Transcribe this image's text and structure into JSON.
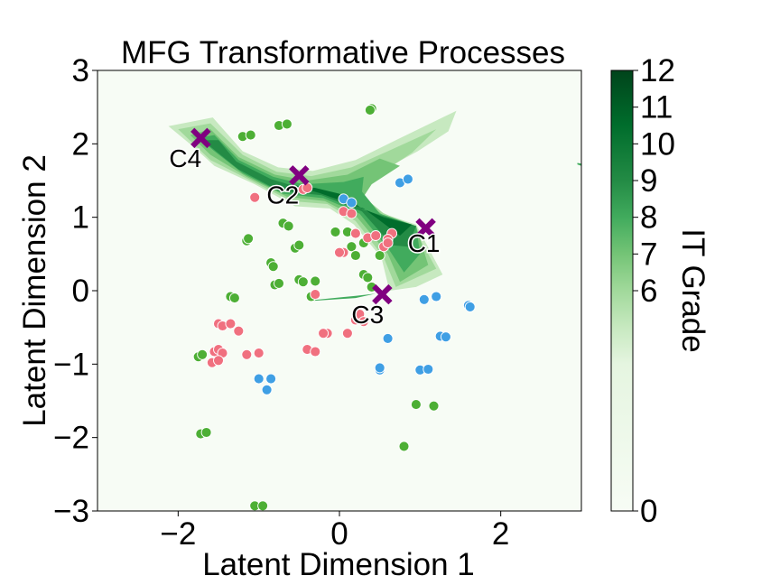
{
  "chart_data": {
    "type": "scatter",
    "title": "MFG Transformative Processes",
    "xlabel": "Latent Dimension 1",
    "ylabel": "Latent Dimension 2",
    "xlim": [
      -3,
      3
    ],
    "ylim": [
      -3,
      3
    ],
    "xticks": [
      -2,
      0,
      2
    ],
    "yticks": [
      -3,
      -2,
      -1,
      0,
      1,
      2,
      3
    ],
    "xtick_labels": [
      "−2",
      "0",
      "2"
    ],
    "ytick_labels": [
      "−3",
      "−2",
      "−1",
      "0",
      "1",
      "2",
      "3"
    ],
    "colorbar": {
      "label": "IT Grade",
      "range": [
        0,
        12
      ],
      "ticks": [
        0,
        6,
        7,
        8,
        9,
        10,
        11,
        12
      ],
      "tick_labels": [
        "0",
        "6",
        "7",
        "8",
        "9",
        "10",
        "11",
        "12"
      ],
      "colors": [
        "#f7fcf5",
        "#e5f5e0",
        "#c7e9c0",
        "#a1d99b",
        "#74c476",
        "#41ab5d",
        "#238b45",
        "#006d2c",
        "#00441b"
      ]
    },
    "background_color": "#f7fcf5",
    "point_colors": {
      "green": "#4daf35",
      "pink": "#f0707f",
      "blue": "#3f9fe4"
    },
    "centroid_color": "#800080",
    "surface_bands": [
      {
        "grade": 6,
        "polygon": [
          [
            -2.12,
            2.24
          ],
          [
            -1.57,
            2.36
          ],
          [
            -1.2,
            1.9
          ],
          [
            -0.76,
            1.68
          ],
          [
            -0.33,
            1.63
          ],
          [
            0.2,
            1.78
          ],
          [
            0.7,
            2.05
          ],
          [
            1.45,
            2.45
          ],
          [
            1.35,
            2.17
          ],
          [
            0.97,
            1.9
          ],
          [
            0.5,
            1.62
          ],
          [
            0.23,
            1.35
          ],
          [
            0.35,
            1.16
          ],
          [
            0.62,
            1.02
          ],
          [
            0.95,
            0.9
          ],
          [
            1.28,
            0.22
          ],
          [
            0.95,
            0.05
          ],
          [
            0.62,
            0.0
          ],
          [
            0.52,
            0.45
          ],
          [
            0.18,
            0.9
          ],
          [
            -0.12,
            1.12
          ],
          [
            -0.55,
            1.15
          ],
          [
            -1.05,
            1.45
          ],
          [
            -1.55,
            1.7
          ],
          [
            -1.8,
            1.95
          ]
        ]
      },
      {
        "grade": 7,
        "polygon": [
          [
            -2.0,
            2.2
          ],
          [
            -1.6,
            2.28
          ],
          [
            -1.2,
            1.85
          ],
          [
            -0.78,
            1.62
          ],
          [
            -0.35,
            1.56
          ],
          [
            0.15,
            1.68
          ],
          [
            0.6,
            1.9
          ],
          [
            1.2,
            2.2
          ],
          [
            0.9,
            1.88
          ],
          [
            0.45,
            1.55
          ],
          [
            0.3,
            1.28
          ],
          [
            0.55,
            1.05
          ],
          [
            0.9,
            0.9
          ],
          [
            1.2,
            0.3
          ],
          [
            0.7,
            0.05
          ],
          [
            0.55,
            0.45
          ],
          [
            0.2,
            0.95
          ],
          [
            -0.15,
            1.18
          ],
          [
            -0.6,
            1.22
          ],
          [
            -1.1,
            1.5
          ],
          [
            -1.6,
            1.78
          ]
        ]
      },
      {
        "grade": 8,
        "polygon": [
          [
            -1.85,
            2.12
          ],
          [
            -1.6,
            2.2
          ],
          [
            -1.25,
            1.82
          ],
          [
            -0.8,
            1.58
          ],
          [
            -0.4,
            1.5
          ],
          [
            0.1,
            1.58
          ],
          [
            0.5,
            1.8
          ],
          [
            0.75,
            1.7
          ],
          [
            0.4,
            1.45
          ],
          [
            0.28,
            1.25
          ],
          [
            0.55,
            1.02
          ],
          [
            0.95,
            0.88
          ],
          [
            1.1,
            0.35
          ],
          [
            0.75,
            0.12
          ],
          [
            0.6,
            0.5
          ],
          [
            0.22,
            1.0
          ],
          [
            -0.18,
            1.22
          ],
          [
            -0.65,
            1.28
          ],
          [
            -1.15,
            1.55
          ],
          [
            -1.6,
            1.85
          ]
        ]
      },
      {
        "grade": 9,
        "polygon": [
          [
            -1.75,
            2.08
          ],
          [
            -1.55,
            2.12
          ],
          [
            -1.25,
            1.78
          ],
          [
            -0.82,
            1.55
          ],
          [
            -0.45,
            1.45
          ],
          [
            0.05,
            1.48
          ],
          [
            0.3,
            1.55
          ],
          [
            0.28,
            1.35
          ],
          [
            0.5,
            1.05
          ],
          [
            0.95,
            0.88
          ],
          [
            1.0,
            0.5
          ],
          [
            0.8,
            0.25
          ],
          [
            0.62,
            0.55
          ],
          [
            0.25,
            1.05
          ],
          [
            -0.2,
            1.26
          ],
          [
            -0.7,
            1.32
          ],
          [
            -1.2,
            1.6
          ],
          [
            -1.55,
            1.9
          ]
        ]
      },
      {
        "grade": 10,
        "polygon": [
          [
            -1.7,
            2.05
          ],
          [
            -1.5,
            2.05
          ],
          [
            -1.28,
            1.76
          ],
          [
            -0.85,
            1.52
          ],
          [
            -0.55,
            1.42
          ],
          [
            -0.3,
            1.38
          ],
          [
            0.05,
            1.3
          ],
          [
            0.3,
            1.1
          ],
          [
            0.6,
            1.0
          ],
          [
            0.95,
            0.88
          ],
          [
            0.85,
            0.6
          ],
          [
            0.65,
            0.62
          ],
          [
            0.28,
            1.08
          ],
          [
            -0.22,
            1.3
          ],
          [
            -0.75,
            1.36
          ],
          [
            -1.25,
            1.65
          ]
        ]
      },
      {
        "grade": 11,
        "polygon": [
          [
            -0.6,
            1.44
          ],
          [
            -0.3,
            1.4
          ],
          [
            0.0,
            1.32
          ],
          [
            0.28,
            1.12
          ],
          [
            0.55,
            1.0
          ],
          [
            0.9,
            0.9
          ],
          [
            0.75,
            0.75
          ],
          [
            0.3,
            1.12
          ],
          [
            -0.25,
            1.33
          ]
        ]
      }
    ],
    "surface_slivers": [
      {
        "grade": 9,
        "polygon": [
          [
            -0.35,
            -0.13
          ],
          [
            0.2,
            -0.07
          ],
          [
            0.45,
            -0.04
          ],
          [
            0.2,
            -0.1
          ],
          [
            -0.35,
            -0.14
          ]
        ]
      },
      {
        "grade": 9,
        "polygon": [
          [
            2.95,
            1.74
          ],
          [
            3.0,
            1.73
          ],
          [
            3.0,
            1.7
          ],
          [
            2.95,
            1.72
          ]
        ]
      }
    ],
    "series": [
      {
        "name": "",
        "color": "#4daf35",
        "points": [
          [
            0.4,
            2.48
          ],
          [
            0.38,
            2.46
          ],
          [
            -0.75,
            2.25
          ],
          [
            -0.65,
            2.27
          ],
          [
            -1.2,
            2.1
          ],
          [
            -1.1,
            2.12
          ],
          [
            -0.7,
            0.92
          ],
          [
            -0.63,
            0.88
          ],
          [
            -0.55,
            0.58
          ],
          [
            -0.5,
            0.62
          ],
          [
            -1.15,
            0.68
          ],
          [
            -1.13,
            0.71
          ],
          [
            -0.85,
            0.38
          ],
          [
            -0.82,
            0.33
          ],
          [
            -0.8,
            0.08
          ],
          [
            -0.75,
            0.1
          ],
          [
            -0.5,
            0.15
          ],
          [
            -0.45,
            0.12
          ],
          [
            -0.3,
            0.13
          ],
          [
            -0.35,
            -0.08
          ],
          [
            -1.35,
            -0.08
          ],
          [
            -1.3,
            -0.1
          ],
          [
            -1.75,
            -0.9
          ],
          [
            -1.7,
            -0.87
          ],
          [
            -0.05,
            0.8
          ],
          [
            0.1,
            0.8
          ],
          [
            0.2,
            0.78
          ],
          [
            0.15,
            0.6
          ],
          [
            0.3,
            0.65
          ],
          [
            0.2,
            0.48
          ],
          [
            0.5,
            0.48
          ],
          [
            0.3,
            0.22
          ],
          [
            0.35,
            0.18
          ],
          [
            0.4,
            0.05
          ],
          [
            -1.72,
            -1.95
          ],
          [
            -1.65,
            -1.93
          ],
          [
            0.8,
            -2.12
          ],
          [
            0.95,
            -1.55
          ],
          [
            1.17,
            -1.57
          ],
          [
            -1.05,
            -2.93
          ],
          [
            -0.95,
            -2.93
          ]
        ]
      },
      {
        "name": "",
        "color": "#f0707f",
        "points": [
          [
            -1.05,
            1.27
          ],
          [
            -0.45,
            1.38
          ],
          [
            -0.4,
            1.4
          ],
          [
            0.05,
            1.08
          ],
          [
            0.15,
            1.05
          ],
          [
            0.2,
            0.78
          ],
          [
            0.35,
            0.72
          ],
          [
            0.45,
            0.75
          ],
          [
            0.55,
            0.6
          ],
          [
            0.65,
            0.78
          ],
          [
            0.6,
            0.7
          ],
          [
            0.6,
            0.65
          ],
          [
            0.05,
            0.52
          ],
          [
            0.0,
            0.52
          ],
          [
            -0.3,
            -0.05
          ],
          [
            -0.15,
            -0.58
          ],
          [
            -0.2,
            -0.58
          ],
          [
            -0.4,
            -0.8
          ],
          [
            -0.3,
            -0.83
          ],
          [
            0.1,
            -0.58
          ],
          [
            0.2,
            -0.4
          ],
          [
            0.25,
            -0.32
          ],
          [
            0.3,
            -0.42
          ],
          [
            -1.5,
            -0.45
          ],
          [
            -1.45,
            -0.48
          ],
          [
            -1.35,
            -0.45
          ],
          [
            -1.25,
            -0.55
          ],
          [
            -1.55,
            -0.83
          ],
          [
            -1.5,
            -0.8
          ],
          [
            -1.45,
            -0.85
          ],
          [
            -1.58,
            -0.98
          ],
          [
            -1.5,
            -0.95
          ],
          [
            -1.15,
            -0.87
          ],
          [
            -1.0,
            -0.85
          ]
        ]
      },
      {
        "name": "",
        "color": "#3f9fe4",
        "points": [
          [
            0.05,
            1.25
          ],
          [
            0.15,
            1.2
          ],
          [
            0.75,
            1.47
          ],
          [
            0.85,
            1.52
          ],
          [
            1.05,
            -0.12
          ],
          [
            1.2,
            -0.08
          ],
          [
            1.6,
            -0.2
          ],
          [
            1.62,
            -0.22
          ],
          [
            1.25,
            -0.62
          ],
          [
            1.32,
            -0.63
          ],
          [
            0.6,
            -0.65
          ],
          [
            1.0,
            -1.08
          ],
          [
            1.1,
            -1.07
          ],
          [
            0.5,
            -1.08
          ],
          [
            0.5,
            -1.05
          ],
          [
            -1.0,
            -1.2
          ],
          [
            -0.85,
            -1.2
          ],
          [
            -0.9,
            -1.35
          ]
        ]
      }
    ],
    "centroids": [
      {
        "label": "C1",
        "x": 1.07,
        "y": 0.85
      },
      {
        "label": "C2",
        "x": -0.5,
        "y": 1.57
      },
      {
        "label": "C3",
        "x": 0.53,
        "y": -0.05
      },
      {
        "label": "C4",
        "x": -1.72,
        "y": 2.08
      }
    ]
  }
}
